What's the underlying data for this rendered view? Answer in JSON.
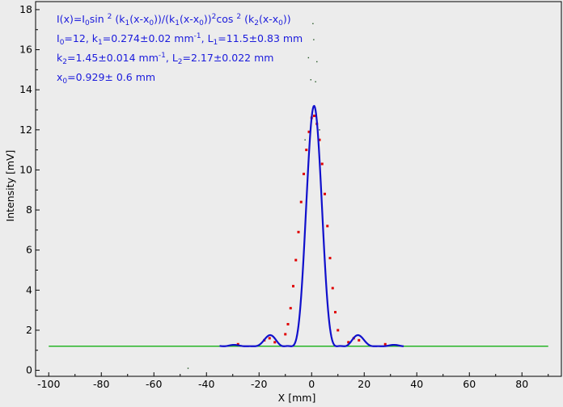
{
  "chart_data": {
    "type": "scatter",
    "title": "",
    "xlabel": "X [mm]",
    "ylabel": "Intensity [mV]",
    "xlim": [
      -105,
      95
    ],
    "ylim": [
      -0.3,
      18.4
    ],
    "x_ticks": [
      -100,
      -80,
      -60,
      -40,
      -20,
      0,
      20,
      40,
      60,
      80
    ],
    "y_ticks": [
      0,
      2,
      4,
      6,
      8,
      10,
      12,
      14,
      16,
      18
    ],
    "grid": false,
    "legend": "none",
    "formula": "I(x)=I0 sin^2 (k1(x-x0))/(k1(x-x0))^2 cos^2 (k2(x-x0))",
    "annotations": {
      "i0": "=12",
      "k1": "=0.274±0.02",
      "L1": "=11.5±0.83",
      "k2": "=1.45±0.014",
      "L2": "=2.17±0.022",
      "x0": "=0.929±  0.6"
    },
    "fit_params": {
      "I0": 12,
      "k1": 0.274,
      "k2": 1.45,
      "x0": 0.929,
      "background": 1.2
    },
    "series": [
      {
        "name": "",
        "kind": "baseline",
        "color": "#00aa00",
        "x": [
          -100,
          -40,
          40,
          90
        ],
        "y": [
          1.2,
          1.2,
          1.2,
          1.2
        ]
      },
      {
        "name": "",
        "kind": "fit",
        "color": "#1010cc",
        "x": [
          -35,
          -30,
          -26,
          -22,
          -18,
          -16,
          -14,
          -12,
          -10,
          -8,
          -6,
          -4,
          -2,
          0,
          1,
          2,
          4,
          6,
          8,
          10,
          12,
          14,
          16,
          18,
          20,
          24,
          28,
          32,
          35
        ],
        "y": [
          1.25,
          1.35,
          1.42,
          1.3,
          1.6,
          1.78,
          1.55,
          1.3,
          1.4,
          2.6,
          5.6,
          9.0,
          12.0,
          13.1,
          13.2,
          13.0,
          11.2,
          7.6,
          4.0,
          1.6,
          1.3,
          1.5,
          1.75,
          1.8,
          1.5,
          1.3,
          1.42,
          1.35,
          1.25
        ]
      },
      {
        "name": "",
        "kind": "measured",
        "color": "#e00000",
        "x": [
          -10,
          -9,
          -8,
          -7,
          -6,
          -5,
          -4,
          -3,
          -2,
          -1,
          0,
          1,
          2,
          3,
          4,
          5,
          6,
          7,
          8,
          9,
          10,
          -18,
          -16,
          -14,
          14,
          16,
          18,
          -28,
          28
        ],
        "y": [
          1.8,
          2.3,
          3.1,
          4.2,
          5.5,
          6.9,
          8.4,
          9.8,
          11.0,
          11.9,
          12.6,
          12.7,
          12.3,
          11.5,
          10.3,
          8.8,
          7.2,
          5.6,
          4.1,
          2.9,
          2.0,
          1.5,
          1.6,
          1.4,
          1.4,
          1.6,
          1.5,
          1.3,
          1.3
        ]
      },
      {
        "name": "",
        "kind": "noise",
        "color": "#225522",
        "x": [
          0.5,
          0.8,
          -1.2,
          2.0,
          -0.3,
          1.5,
          -2.5,
          3.0,
          -47
        ],
        "y": [
          17.3,
          16.5,
          15.6,
          15.4,
          14.5,
          14.4,
          11.5,
          12.0,
          0.1
        ]
      }
    ]
  }
}
